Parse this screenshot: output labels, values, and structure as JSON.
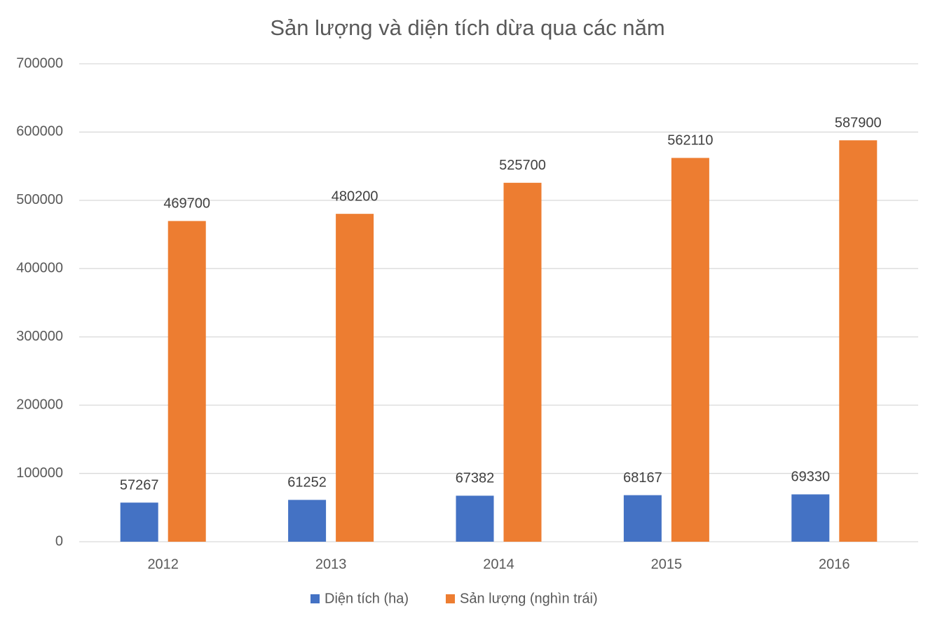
{
  "chart_data": {
    "type": "bar",
    "title": "Sản lượng và diện tích dừa qua các năm",
    "categories": [
      "2012",
      "2013",
      "2014",
      "2015",
      "2016"
    ],
    "series": [
      {
        "name": "Diện tích (ha)",
        "color": "#4472c4",
        "values": [
          57267,
          61252,
          67382,
          68167,
          69330
        ]
      },
      {
        "name": "Sản lượng (nghìn trái)",
        "color": "#ed7d31",
        "values": [
          469700,
          480200,
          525700,
          562110,
          587900
        ]
      }
    ],
    "ylim": [
      0,
      700000
    ],
    "yticks": [
      0,
      100000,
      200000,
      300000,
      400000,
      500000,
      600000,
      700000
    ],
    "grid": true,
    "legend": "bottom"
  }
}
